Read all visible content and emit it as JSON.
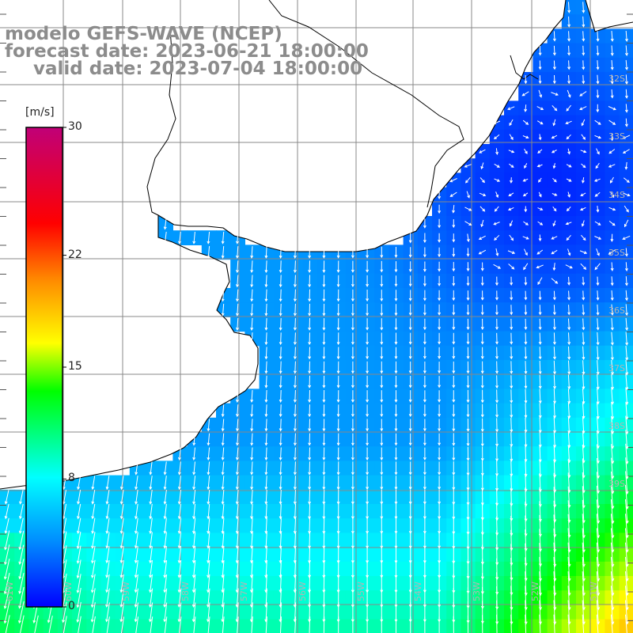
{
  "header": {
    "model": "modelo GEFS-WAVE (NCEP)",
    "forecast": "forecast date: 2023-06-21 18:00:00",
    "valid": "valid date: 2023-07-04 18:00:00"
  },
  "colorbar": {
    "unit": "[m/s]",
    "ticks": [
      {
        "label": "30",
        "value": 30
      },
      {
        "label": "22",
        "value": 22
      },
      {
        "label": "15",
        "value": 15
      },
      {
        "label": "8",
        "value": 8
      },
      {
        "label": "0",
        "value": 0
      }
    ],
    "min": 0,
    "max": 30,
    "colors": [
      "#0000ff",
      "#0090ff",
      "#00ffff",
      "#00ff00",
      "#ffff00",
      "#ff8c00",
      "#ff0000",
      "#c00078"
    ]
  },
  "map": {
    "lat_labels": [
      "32S",
      "33S",
      "34S",
      "35S",
      "36S",
      "37S",
      "38S",
      "39S"
    ],
    "lon_labels": [
      "61W",
      "60W",
      "59W",
      "58W",
      "57W",
      "56W",
      "55W",
      "54W",
      "53W",
      "52W",
      "51W"
    ],
    "land_color": "#ffffff",
    "grid_color": "#888888",
    "arrow_color": "#ffffff"
  }
}
